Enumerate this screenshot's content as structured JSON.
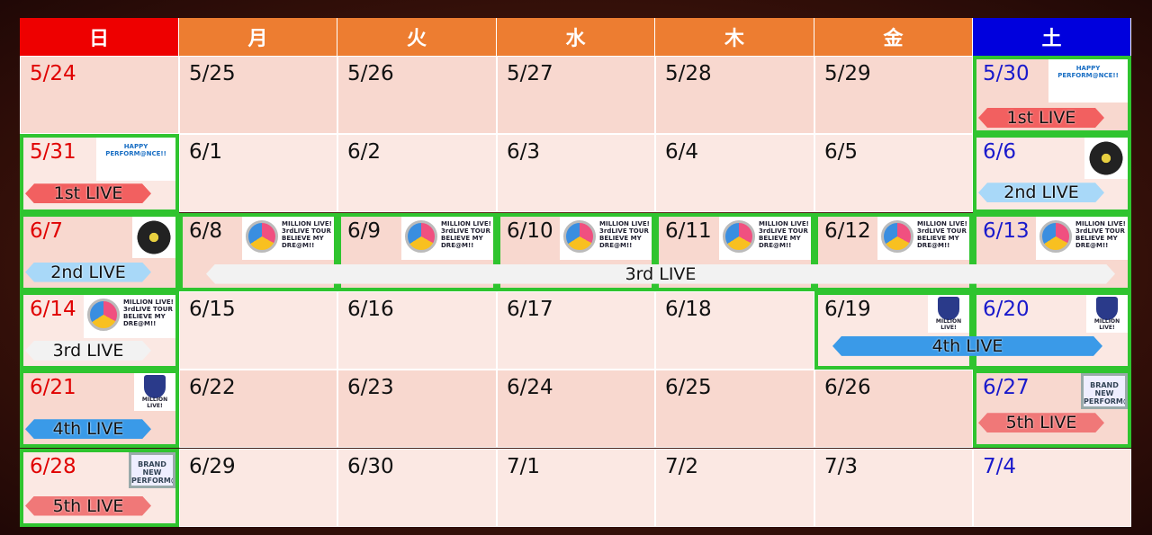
{
  "weekdays": [
    "日",
    "月",
    "火",
    "水",
    "木",
    "金",
    "土"
  ],
  "colors": {
    "sunday_header": "#ee0000",
    "weekday_header": "#ed7d31",
    "saturday_header": "#0000dd",
    "highlight_border": "#2fc42f"
  },
  "weeks": [
    [
      "5/24",
      "5/25",
      "5/26",
      "5/27",
      "5/28",
      "5/29",
      "5/30"
    ],
    [
      "5/31",
      "6/1",
      "6/2",
      "6/3",
      "6/4",
      "6/5",
      "6/6"
    ],
    [
      "6/7",
      "6/8",
      "6/9",
      "6/10",
      "6/11",
      "6/12",
      "6/13"
    ],
    [
      "6/14",
      "6/15",
      "6/16",
      "6/17",
      "6/18",
      "6/19",
      "6/20"
    ],
    [
      "6/21",
      "6/22",
      "6/23",
      "6/24",
      "6/25",
      "6/26",
      "6/27"
    ],
    [
      "6/28",
      "6/29",
      "6/30",
      "7/1",
      "7/2",
      "7/3",
      "7/4"
    ]
  ],
  "banners": {
    "live1": "1st LIVE",
    "live2": "2nd LIVE",
    "live3": "3rd LIVE",
    "live4": "4th LIVE",
    "live5": "5th LIVE"
  },
  "logos": {
    "hp": "HAPPY PERFORM@NCE!!",
    "ml": "MILLION LIVE! 3rdLIVE TOUR BELIEVE MY DRE@M!!",
    "eh": "ENJOY H@RMONY!!",
    "m4": "MILLION LIVE!",
    "bn": "BRAND NEW PERFORM@NCE!!"
  }
}
